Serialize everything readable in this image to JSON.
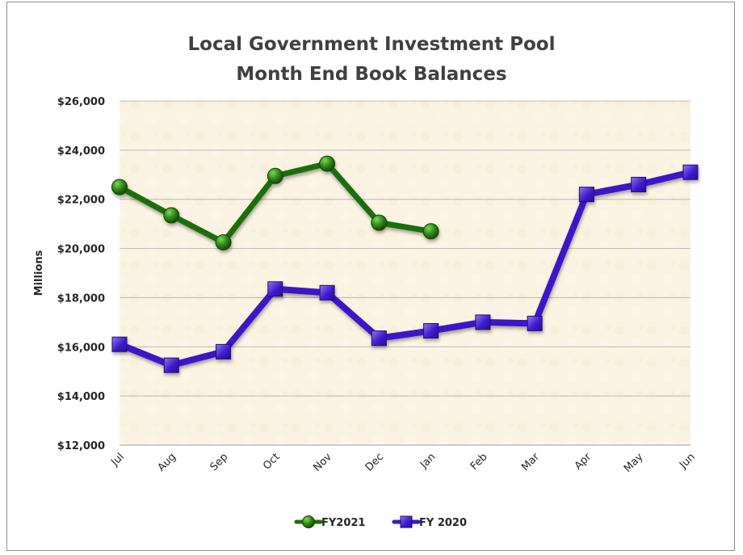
{
  "chart_data": {
    "type": "line",
    "title": [
      "Local Government Investment Pool",
      "Month End Book Balances"
    ],
    "ylabel": "Millions",
    "xlabel": "",
    "categories": [
      "Jul",
      "Aug",
      "Sep",
      "Oct",
      "Nov",
      "Dec",
      "Jan",
      "Feb",
      "Mar",
      "Apr",
      "May",
      "Jun"
    ],
    "ylim": [
      12000,
      26000
    ],
    "yticks": [
      12000,
      14000,
      16000,
      18000,
      20000,
      22000,
      24000,
      26000
    ],
    "ytick_labels": [
      "$12,000",
      "$14,000",
      "$16,000",
      "$18,000",
      "$20,000",
      "$22,000",
      "$24,000",
      "$26,000"
    ],
    "grid": true,
    "legend_position": "bottom",
    "series": [
      {
        "name": "FY2021",
        "marker": "circle",
        "color": "#1f6e0b",
        "values": [
          22500,
          21350,
          20250,
          22950,
          23450,
          21050,
          20700,
          null,
          null,
          null,
          null,
          null
        ]
      },
      {
        "name": "FY 2020",
        "marker": "square",
        "color": "#3d18c8",
        "values": [
          16100,
          15250,
          15800,
          18350,
          18200,
          16350,
          16650,
          17000,
          16950,
          22200,
          22600,
          23100
        ]
      }
    ]
  }
}
